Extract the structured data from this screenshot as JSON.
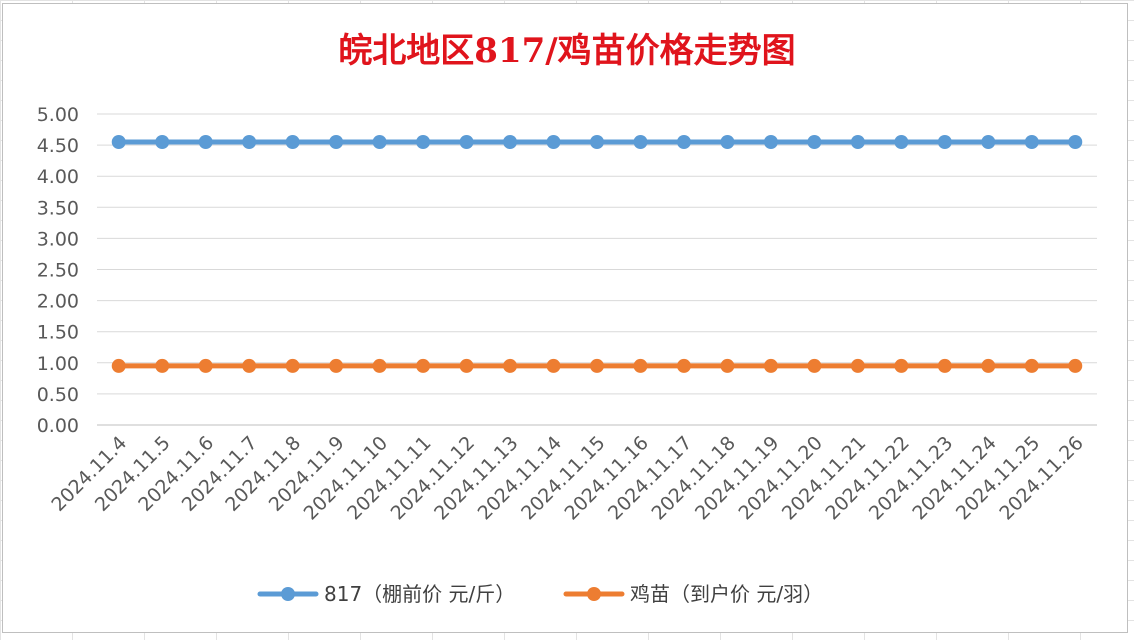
{
  "chart_data": {
    "type": "line",
    "title": "皖北地区817/鸡苗价格走势图",
    "xlabel": "",
    "ylabel": "",
    "ylim": [
      0,
      5
    ],
    "ytick_step": 0.5,
    "grid": true,
    "legend_position": "bottom",
    "categories": [
      "2024.11.4",
      "2024.11.5",
      "2024.11.6",
      "2024.11.7",
      "2024.11.8",
      "2024.11.9",
      "2024.11.10",
      "2024.11.11",
      "2024.11.12",
      "2024.11.13",
      "2024.11.14",
      "2024.11.15",
      "2024.11.16",
      "2024.11.17",
      "2024.11.18",
      "2024.11.19",
      "2024.11.20",
      "2024.11.21",
      "2024.11.22",
      "2024.11.23",
      "2024.11.24",
      "2024.11.25",
      "2024.11.26"
    ],
    "series": [
      {
        "name": "817（棚前价 元/斤）",
        "color": "#5b9bd5",
        "values": [
          4.55,
          4.55,
          4.55,
          4.55,
          4.55,
          4.55,
          4.55,
          4.55,
          4.55,
          4.55,
          4.55,
          4.55,
          4.55,
          4.55,
          4.55,
          4.55,
          4.55,
          4.55,
          4.55,
          4.55,
          4.55,
          4.55,
          4.55
        ]
      },
      {
        "name": "鸡苗（到户价 元/羽）",
        "color": "#ed7d31",
        "values": [
          0.95,
          0.95,
          0.95,
          0.95,
          0.95,
          0.95,
          0.95,
          0.95,
          0.95,
          0.95,
          0.95,
          0.95,
          0.95,
          0.95,
          0.95,
          0.95,
          0.95,
          0.95,
          0.95,
          0.95,
          0.95,
          0.95,
          0.95
        ]
      }
    ]
  }
}
